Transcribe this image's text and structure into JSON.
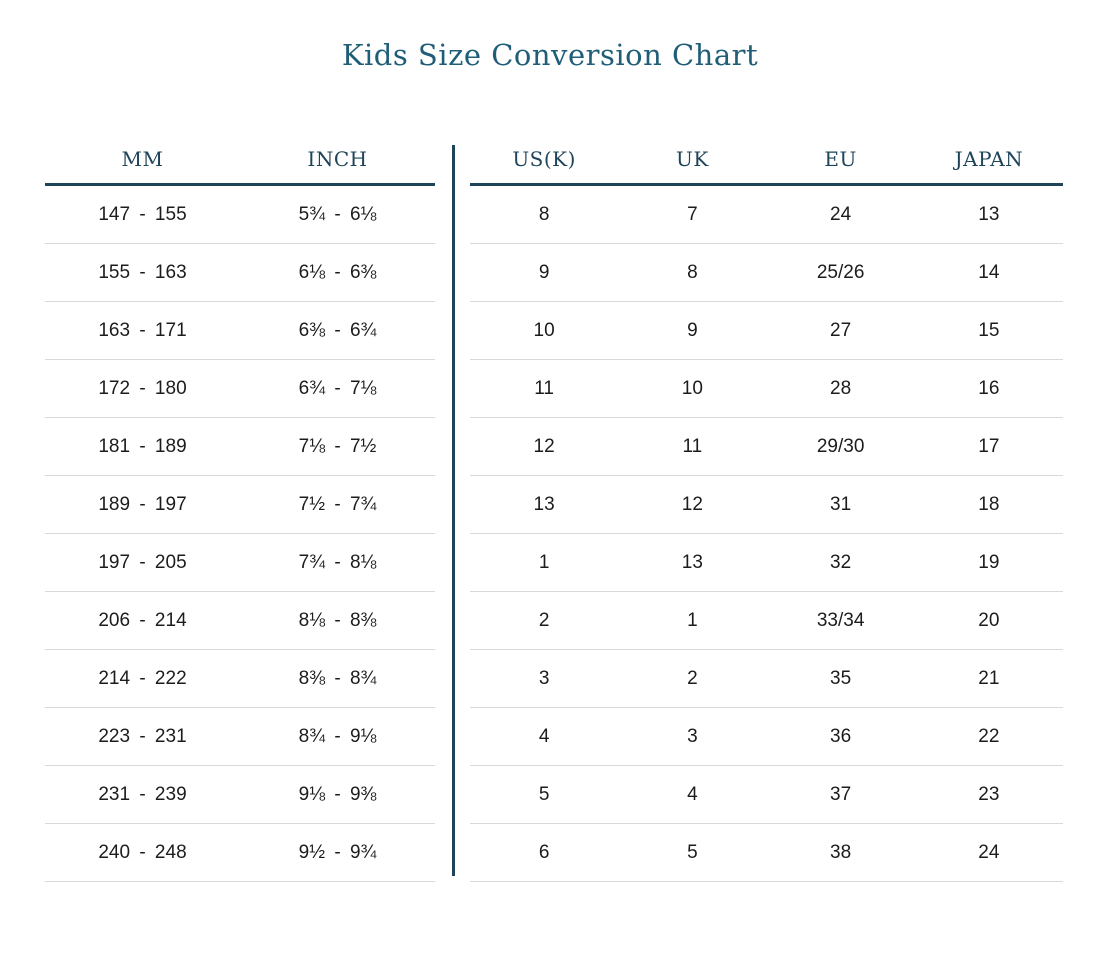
{
  "title": "Kids Size Conversion Chart",
  "colors": {
    "title_text": "#205e78",
    "header_text": "#1e4459",
    "header_rule": "#1e4459",
    "divider": "#1e4459",
    "row_rule": "#d9d9d9",
    "cell_text": "#1c1c1c",
    "background": "#ffffff"
  },
  "chart_data": {
    "type": "table",
    "title": "Kids Size Conversion Chart",
    "tables": [
      {
        "name": "mm-inch",
        "headers": [
          "MM",
          "INCH"
        ],
        "rows": [
          [
            "147 - 155",
            "5¾ - 6⅛"
          ],
          [
            "155 - 163",
            "6⅛ - 6⅜"
          ],
          [
            "163 - 171",
            "6⅜ - 6¾"
          ],
          [
            "172 - 180",
            "6¾ - 7⅛"
          ],
          [
            "181 - 189",
            "7⅛ - 7½"
          ],
          [
            "189 - 197",
            "7½ - 7¾"
          ],
          [
            "197 - 205",
            "7¾ - 8⅛"
          ],
          [
            "206 - 214",
            "8⅛ - 8⅜"
          ],
          [
            "214 - 222",
            "8⅜ - 8¾"
          ],
          [
            "223 - 231",
            "8¾ - 9⅛"
          ],
          [
            "231 - 239",
            "9⅛ - 9⅜"
          ],
          [
            "240 - 248",
            "9½ - 9¾"
          ]
        ]
      },
      {
        "name": "international-sizes",
        "headers": [
          "US(K)",
          "UK",
          "EU",
          "JAPAN"
        ],
        "rows": [
          [
            "8",
            "7",
            "24",
            "13"
          ],
          [
            "9",
            "8",
            "25/26",
            "14"
          ],
          [
            "10",
            "9",
            "27",
            "15"
          ],
          [
            "11",
            "10",
            "28",
            "16"
          ],
          [
            "12",
            "11",
            "29/30",
            "17"
          ],
          [
            "13",
            "12",
            "31",
            "18"
          ],
          [
            "1",
            "13",
            "32",
            "19"
          ],
          [
            "2",
            "1",
            "33/34",
            "20"
          ],
          [
            "3",
            "2",
            "35",
            "21"
          ],
          [
            "4",
            "3",
            "36",
            "22"
          ],
          [
            "5",
            "4",
            "37",
            "23"
          ],
          [
            "6",
            "5",
            "38",
            "24"
          ]
        ]
      }
    ]
  }
}
